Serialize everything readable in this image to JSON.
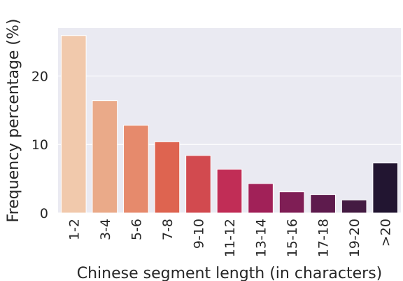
{
  "chart_data": {
    "type": "bar",
    "title": "",
    "xlabel": "Chinese segment length (in characters)",
    "ylabel": "Frequency percentage (%)",
    "categories": [
      "1-2",
      "3-4",
      "5-6",
      "7-8",
      "9-10",
      "11-12",
      "13-14",
      "15-16",
      "17-18",
      "19-20",
      ">20"
    ],
    "values": [
      25.9,
      16.4,
      12.8,
      10.4,
      8.4,
      6.4,
      4.3,
      3.1,
      2.7,
      1.9,
      7.3
    ],
    "colors": [
      "#f1c9ac",
      "#eaaa89",
      "#e68a6c",
      "#de6450",
      "#d24a4f",
      "#c12d56",
      "#a12158",
      "#7f1e55",
      "#5e1b4d",
      "#441b42",
      "#221531"
    ],
    "ylim": [
      0,
      27
    ],
    "yticks": [
      0,
      10,
      20
    ],
    "grid": true,
    "background": "#eaeaf2"
  }
}
